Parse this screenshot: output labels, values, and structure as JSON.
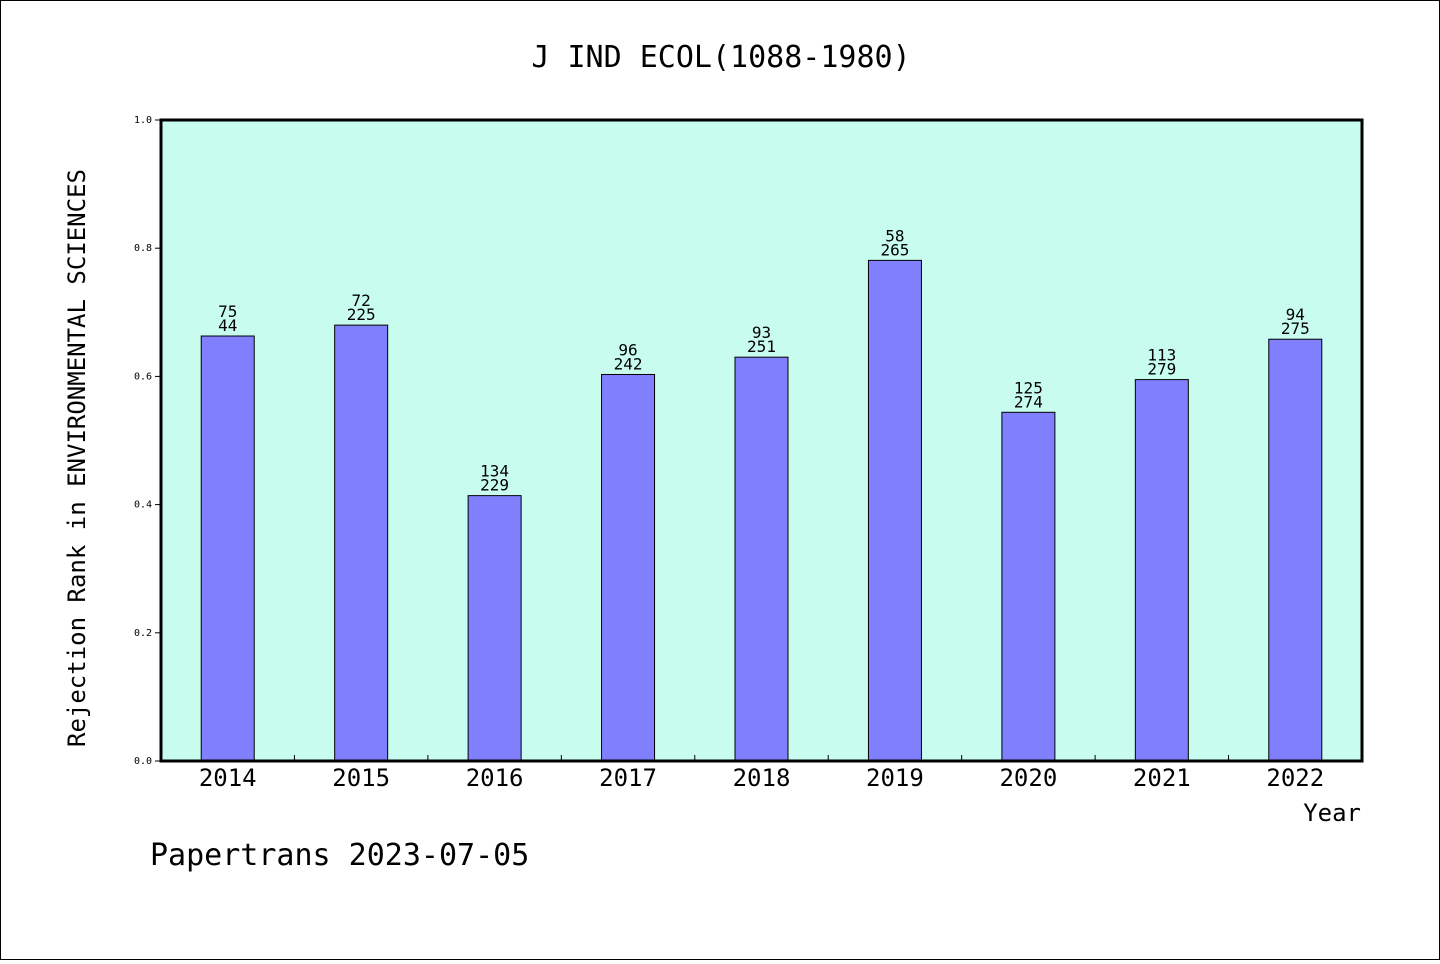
{
  "chart_data": {
    "type": "bar",
    "title": "J IND ECOL(1088-1980)",
    "xlabel": "Year",
    "ylabel": "Rejection Rank in ENVIRONMENTAL SCIENCES",
    "ylim": [
      0,
      1.0
    ],
    "yticks": [
      "0.0",
      "0.2",
      "0.4",
      "0.6",
      "0.8",
      "1.0"
    ],
    "categories": [
      "2014",
      "2015",
      "2016",
      "2017",
      "2018",
      "2019",
      "2020",
      "2021",
      "2022"
    ],
    "values": [
      0.663,
      0.68,
      0.414,
      0.603,
      0.63,
      0.781,
      0.544,
      0.595,
      0.658
    ],
    "labels_top": [
      "75",
      "72",
      "134",
      "96",
      "93",
      "58",
      "125",
      "113",
      "94"
    ],
    "labels_bottom": [
      "44",
      "225",
      "229",
      "242",
      "251",
      "265",
      "274",
      "279",
      "275"
    ],
    "grid": false,
    "colors": {
      "plot_background": "#c8fcef",
      "bar_fill": "#8080ff",
      "bar_stroke": "#000000"
    }
  },
  "footer": {
    "text": "Papertrans 2023-07-05"
  }
}
